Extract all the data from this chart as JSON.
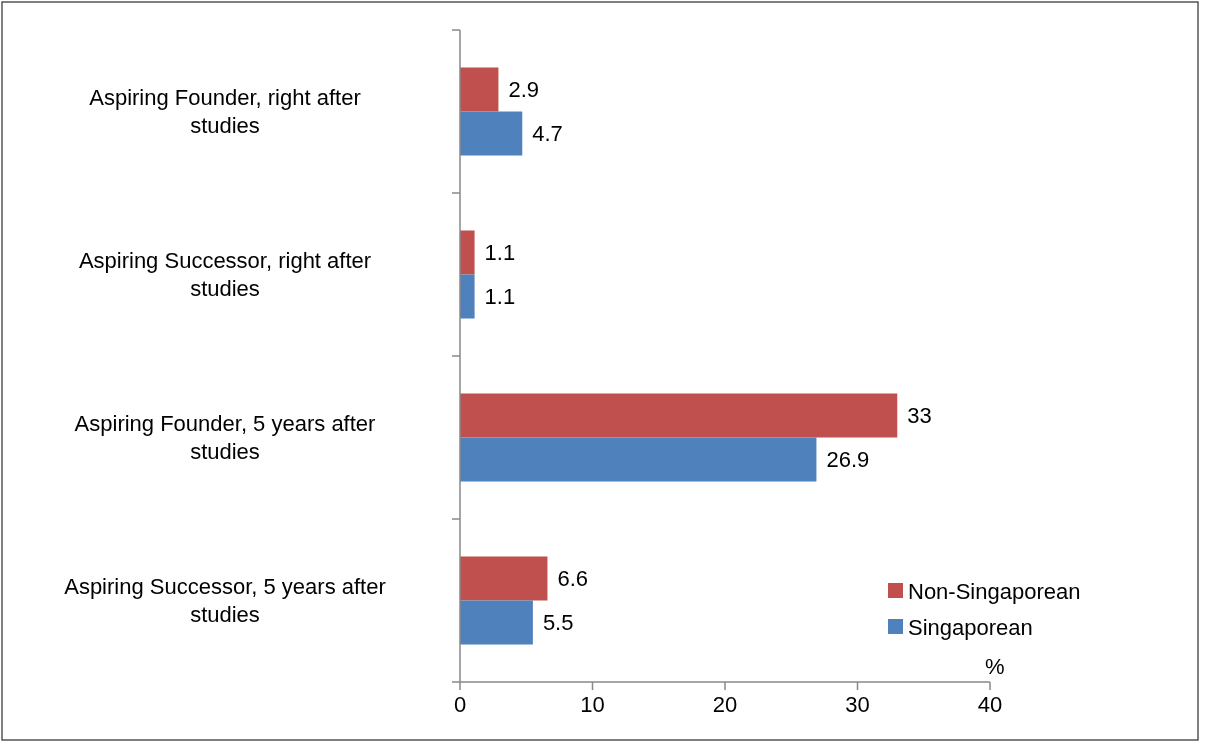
{
  "chart_data": {
    "type": "bar",
    "orientation": "horizontal",
    "categories": [
      "Aspiring Founder, right after studies",
      "Aspiring Successor, right after studies",
      "Aspiring Founder, 5 years after studies",
      "Aspiring Successor, 5 years after studies"
    ],
    "series": [
      {
        "name": "Non-Singaporean",
        "color": "#c0504d",
        "values": [
          2.9,
          1.1,
          33,
          6.6
        ]
      },
      {
        "name": "Singaporean",
        "color": "#4f81bd",
        "values": [
          4.7,
          1.1,
          26.9,
          5.5
        ]
      }
    ],
    "xlim": [
      0,
      40
    ],
    "xticks": [
      0,
      10,
      20,
      30,
      40
    ],
    "xlabel": "%",
    "data_labels": true,
    "legend": "bottom right",
    "grid": false
  }
}
